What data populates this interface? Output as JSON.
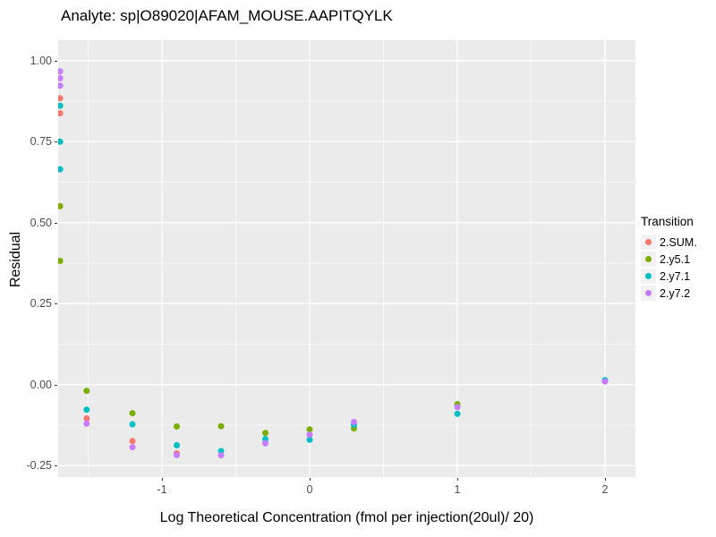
{
  "title": "Analyte: sp|O89020|AFAM_MOUSE.AAPITQYLK",
  "chart_data": {
    "type": "scatter",
    "title": "Analyte: sp|O89020|AFAM_MOUSE.AAPITQYLK",
    "xlabel": "Log Theoretical Concentration (fmol per injection(20ul)/ 20)",
    "ylabel": "Residual",
    "xlim": [
      -1.703,
      2.206
    ],
    "ylim": [
      -0.285,
      1.063
    ],
    "grid": true,
    "panel_bg": "#EBEBEB",
    "grid_color": "#FFFFFF",
    "tick_label_color": "#4D4D4D",
    "x_ticks": [
      {
        "v": -1,
        "label": "-1"
      },
      {
        "v": 0,
        "label": "0"
      },
      {
        "v": 1,
        "label": "1"
      },
      {
        "v": 2,
        "label": "2"
      }
    ],
    "y_ticks": [
      {
        "v": 1.0,
        "label": "1.00"
      },
      {
        "v": 0.75,
        "label": "0.75"
      },
      {
        "v": 0.5,
        "label": "0.50"
      },
      {
        "v": 0.25,
        "label": "0.25"
      },
      {
        "v": 0.0,
        "label": "0.00"
      },
      {
        "v": -0.25,
        "label": "-0.25"
      }
    ],
    "x_minor": [
      -1.5,
      -0.5,
      0.5,
      1.5
    ],
    "y_minor": [
      0.875,
      0.625,
      0.375,
      0.125,
      -0.125
    ],
    "legend_title": "Transition",
    "legend_position": "right",
    "series": [
      {
        "name": "2.SUM.",
        "color": "#F8766D",
        "points": [
          [
            -1.69,
            0.884
          ],
          [
            -1.69,
            0.838
          ],
          [
            -1.51,
            -0.104
          ],
          [
            -1.2,
            -0.174
          ],
          [
            -0.9,
            -0.212
          ]
        ]
      },
      {
        "name": "2.y5.1",
        "color": "#7CAE00",
        "points": [
          [
            -1.69,
            0.551
          ],
          [
            -1.69,
            0.382
          ],
          [
            -1.51,
            -0.019
          ],
          [
            -1.2,
            -0.088
          ],
          [
            -0.9,
            -0.129
          ],
          [
            -0.6,
            -0.128
          ],
          [
            -0.3,
            -0.149
          ],
          [
            0,
            -0.138
          ],
          [
            0.3,
            -0.135
          ],
          [
            1,
            -0.06
          ]
        ]
      },
      {
        "name": "2.y7.1",
        "color": "#00BFC4",
        "points": [
          [
            -1.69,
            0.861
          ],
          [
            -1.69,
            0.75
          ],
          [
            -1.69,
            0.665
          ],
          [
            -1.51,
            -0.077
          ],
          [
            -1.2,
            -0.122
          ],
          [
            -0.9,
            -0.187
          ],
          [
            -0.6,
            -0.205
          ],
          [
            -0.3,
            -0.168
          ],
          [
            0,
            -0.17
          ],
          [
            0.3,
            -0.124
          ],
          [
            1,
            -0.09
          ],
          [
            2,
            0.014
          ]
        ]
      },
      {
        "name": "2.y7.2",
        "color": "#C77CFF",
        "points": [
          [
            -1.69,
            0.967
          ],
          [
            -1.69,
            0.946
          ],
          [
            -1.69,
            0.923
          ],
          [
            -1.51,
            -0.12
          ],
          [
            -1.2,
            -0.193
          ],
          [
            -0.9,
            -0.217
          ],
          [
            -0.6,
            -0.218
          ],
          [
            -0.3,
            -0.181
          ],
          [
            0,
            -0.154
          ],
          [
            0.3,
            -0.115
          ],
          [
            1,
            -0.069
          ],
          [
            2,
            0.01
          ]
        ]
      }
    ]
  }
}
